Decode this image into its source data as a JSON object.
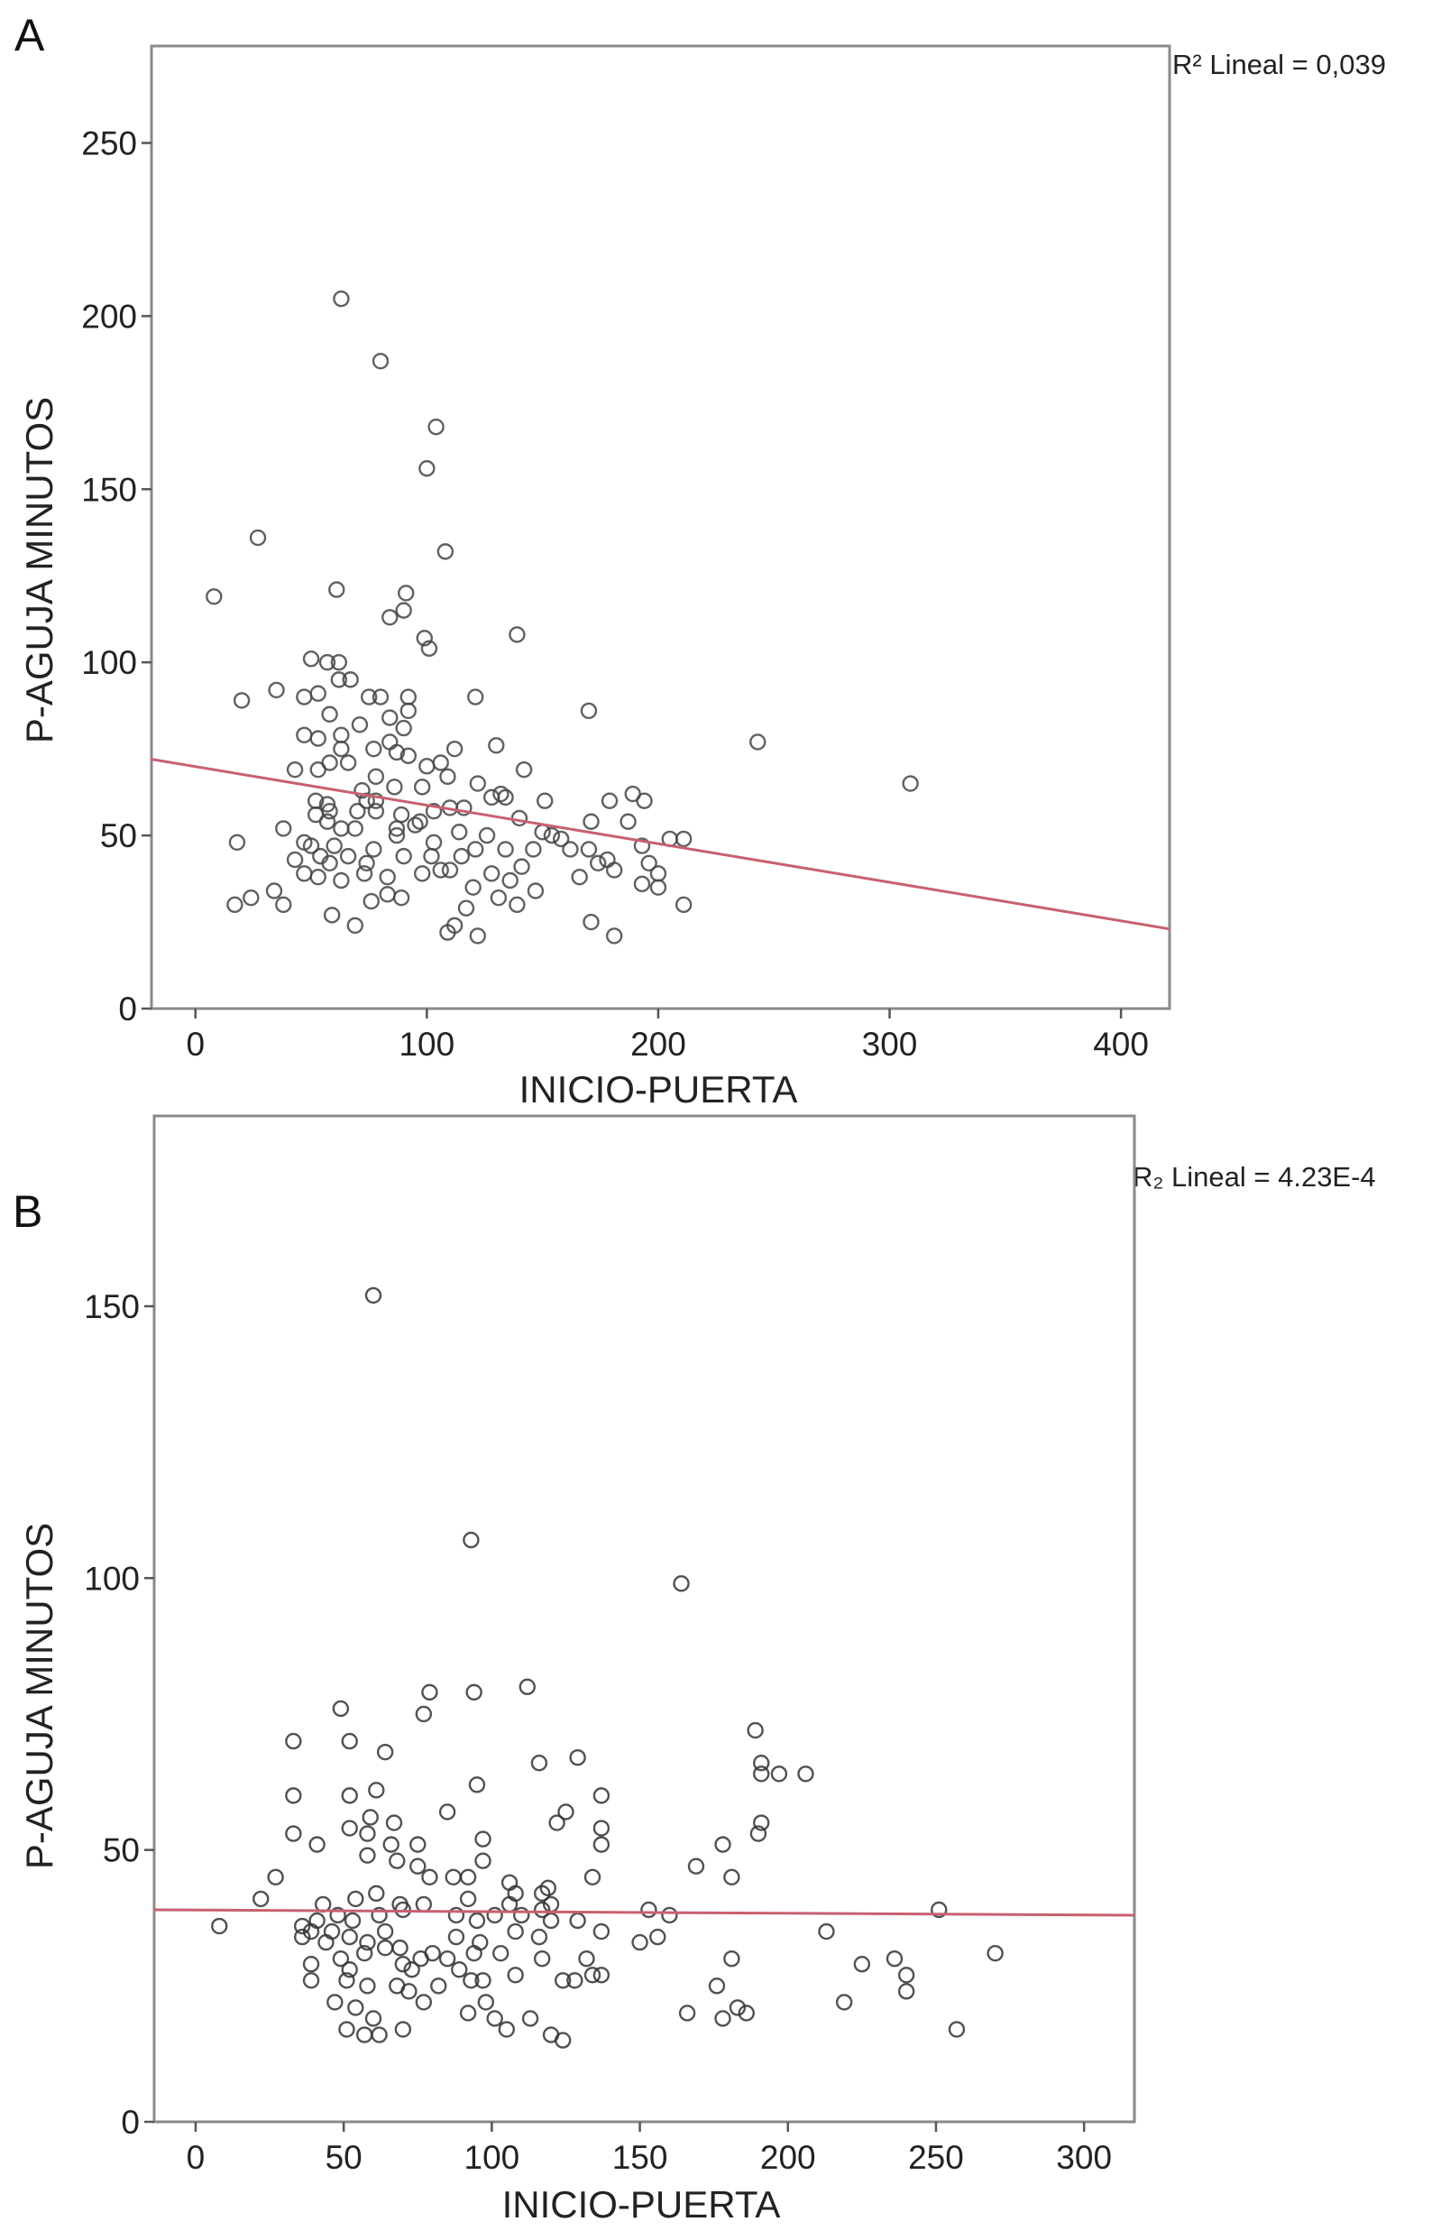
{
  "chart_data": [
    {
      "type": "scatter",
      "panel_label": "A",
      "xlabel": "INICIO-PUERTA",
      "ylabel": "P-AGUJA MINUTOS",
      "annotation": "R² Lineal = 0,039",
      "xlim": [
        -19,
        421
      ],
      "ylim": [
        0,
        278
      ],
      "xticks": [
        0,
        100,
        200,
        300,
        400
      ],
      "yticks": [
        0,
        50,
        100,
        150,
        200,
        250
      ],
      "grid": false,
      "marker_color": "#444444",
      "fit_line_color": "#c9606f",
      "fit_line": {
        "x": [
          -19,
          421
        ],
        "y": [
          72,
          23
        ]
      },
      "points": [
        [
          63,
          205
        ],
        [
          80,
          187
        ],
        [
          104,
          168
        ],
        [
          100,
          156
        ],
        [
          108,
          132
        ],
        [
          27,
          136
        ],
        [
          8,
          119
        ],
        [
          61,
          121
        ],
        [
          91,
          120
        ],
        [
          90,
          115
        ],
        [
          84,
          113
        ],
        [
          99,
          107
        ],
        [
          101,
          104
        ],
        [
          139,
          108
        ],
        [
          50,
          101
        ],
        [
          62,
          100
        ],
        [
          57,
          100
        ],
        [
          62,
          95
        ],
        [
          67,
          95
        ],
        [
          20,
          89
        ],
        [
          35,
          92
        ],
        [
          47,
          90
        ],
        [
          53,
          91
        ],
        [
          75,
          90
        ],
        [
          80,
          90
        ],
        [
          92,
          90
        ],
        [
          121,
          90
        ],
        [
          170,
          86
        ],
        [
          58,
          85
        ],
        [
          92,
          86
        ],
        [
          84,
          84
        ],
        [
          71,
          82
        ],
        [
          90,
          81
        ],
        [
          47,
          79
        ],
        [
          63,
          79
        ],
        [
          53,
          78
        ],
        [
          243,
          77
        ],
        [
          130,
          76
        ],
        [
          112,
          75
        ],
        [
          63,
          75
        ],
        [
          77,
          75
        ],
        [
          87,
          74
        ],
        [
          43,
          69
        ],
        [
          53,
          69
        ],
        [
          100,
          70
        ],
        [
          109,
          67
        ],
        [
          142,
          69
        ],
        [
          309,
          65
        ],
        [
          122,
          65
        ],
        [
          128,
          61
        ],
        [
          134,
          61
        ],
        [
          151,
          60
        ],
        [
          179,
          60
        ],
        [
          189,
          62
        ],
        [
          194,
          60
        ],
        [
          74,
          60
        ],
        [
          78,
          60
        ],
        [
          52,
          60
        ],
        [
          57,
          59
        ],
        [
          110,
          58
        ],
        [
          140,
          55
        ],
        [
          171,
          54
        ],
        [
          187,
          54
        ],
        [
          38,
          52
        ],
        [
          18,
          48
        ],
        [
          154,
          50
        ],
        [
          158,
          49
        ],
        [
          205,
          49
        ],
        [
          211,
          49
        ],
        [
          193,
          47
        ],
        [
          170,
          46
        ],
        [
          178,
          43
        ],
        [
          181,
          40
        ],
        [
          196,
          42
        ],
        [
          200,
          39
        ],
        [
          200,
          35
        ],
        [
          193,
          36
        ],
        [
          211,
          30
        ],
        [
          171,
          25
        ],
        [
          181,
          21
        ],
        [
          122,
          21
        ],
        [
          109,
          22
        ],
        [
          112,
          24
        ],
        [
          117,
          29
        ],
        [
          120,
          35
        ],
        [
          17,
          30
        ],
        [
          24,
          32
        ],
        [
          34,
          34
        ],
        [
          38,
          30
        ],
        [
          59,
          27
        ],
        [
          69,
          24
        ],
        [
          76,
          31
        ],
        [
          83,
          33
        ],
        [
          89,
          32
        ],
        [
          139,
          30
        ],
        [
          147,
          34
        ],
        [
          131,
          32
        ],
        [
          136,
          37
        ],
        [
          141,
          41
        ],
        [
          128,
          39
        ],
        [
          43,
          43
        ],
        [
          47,
          39
        ],
        [
          53,
          38
        ],
        [
          63,
          37
        ],
        [
          73,
          39
        ],
        [
          83,
          38
        ],
        [
          98,
          39
        ],
        [
          106,
          40
        ],
        [
          115,
          44
        ],
        [
          121,
          46
        ],
        [
          126,
          50
        ],
        [
          114,
          51
        ],
        [
          103,
          48
        ],
        [
          95,
          53
        ],
        [
          87,
          52
        ],
        [
          69,
          52
        ],
        [
          60,
          47
        ],
        [
          50,
          47
        ],
        [
          54,
          44
        ],
        [
          66,
          44
        ],
        [
          77,
          46
        ],
        [
          90,
          44
        ],
        [
          97,
          54
        ],
        [
          87,
          50
        ],
        [
          63,
          52
        ],
        [
          57,
          54
        ],
        [
          70,
          57
        ],
        [
          78,
          57
        ],
        [
          89,
          56
        ],
        [
          103,
          57
        ],
        [
          134,
          46
        ],
        [
          146,
          46
        ],
        [
          162,
          46
        ],
        [
          174,
          42
        ],
        [
          166,
          38
        ],
        [
          52,
          56
        ],
        [
          58,
          57
        ],
        [
          72,
          63
        ],
        [
          86,
          64
        ],
        [
          98,
          64
        ],
        [
          66,
          71
        ],
        [
          78,
          67
        ],
        [
          106,
          71
        ],
        [
          58,
          71
        ],
        [
          84,
          77
        ],
        [
          92,
          73
        ],
        [
          58,
          42
        ],
        [
          74,
          42
        ],
        [
          102,
          44
        ],
        [
          110,
          40
        ],
        [
          47,
          48
        ],
        [
          150,
          51
        ],
        [
          132,
          62
        ],
        [
          116,
          58
        ]
      ]
    },
    {
      "type": "scatter",
      "panel_label": "B",
      "xlabel": "INICIO-PUERTA",
      "ylabel": "P-AGUJA MINUTOS",
      "annotation": "R₂ Lineal = 4.23E-4",
      "xlim": [
        -14,
        317
      ],
      "ylim": [
        0,
        185
      ],
      "xticks": [
        0,
        50,
        100,
        150,
        200,
        250,
        300
      ],
      "yticks": [
        0,
        50,
        100,
        150
      ],
      "grid": false,
      "marker_color": "#333333",
      "fit_line_color": "#c9606f",
      "fit_line": {
        "x": [
          -14,
          317
        ],
        "y": [
          39,
          38
        ]
      },
      "points": [
        [
          60,
          152
        ],
        [
          93,
          107
        ],
        [
          164,
          99
        ],
        [
          112,
          80
        ],
        [
          79,
          79
        ],
        [
          94,
          79
        ],
        [
          49,
          76
        ],
        [
          77,
          75
        ],
        [
          189,
          72
        ],
        [
          33,
          70
        ],
        [
          52,
          70
        ],
        [
          64,
          68
        ],
        [
          129,
          67
        ],
        [
          116,
          66
        ],
        [
          191,
          66
        ],
        [
          197,
          64
        ],
        [
          206,
          64
        ],
        [
          191,
          64
        ],
        [
          95,
          62
        ],
        [
          61,
          61
        ],
        [
          33,
          60
        ],
        [
          52,
          60
        ],
        [
          137,
          60
        ],
        [
          125,
          57
        ],
        [
          122,
          55
        ],
        [
          85,
          57
        ],
        [
          59,
          56
        ],
        [
          67,
          55
        ],
        [
          52,
          54
        ],
        [
          137,
          54
        ],
        [
          191,
          55
        ],
        [
          190,
          53
        ],
        [
          33,
          53
        ],
        [
          58,
          53
        ],
        [
          41,
          51
        ],
        [
          97,
          52
        ],
        [
          178,
          51
        ],
        [
          75,
          51
        ],
        [
          66,
          51
        ],
        [
          137,
          51
        ],
        [
          58,
          49
        ],
        [
          68,
          48
        ],
        [
          169,
          47
        ],
        [
          75,
          47
        ],
        [
          27,
          45
        ],
        [
          79,
          45
        ],
        [
          87,
          45
        ],
        [
          92,
          45
        ],
        [
          97,
          48
        ],
        [
          134,
          45
        ],
        [
          181,
          45
        ],
        [
          106,
          44
        ],
        [
          22,
          41
        ],
        [
          61,
          42
        ],
        [
          119,
          43
        ],
        [
          251,
          39
        ],
        [
          153,
          39
        ],
        [
          160,
          38
        ],
        [
          8,
          36
        ],
        [
          213,
          35
        ],
        [
          137,
          35
        ],
        [
          156,
          34
        ],
        [
          150,
          33
        ],
        [
          270,
          31
        ],
        [
          236,
          30
        ],
        [
          181,
          30
        ],
        [
          225,
          29
        ],
        [
          240,
          27
        ],
        [
          240,
          24
        ],
        [
          176,
          25
        ],
        [
          219,
          22
        ],
        [
          166,
          20
        ],
        [
          178,
          19
        ],
        [
          183,
          21
        ],
        [
          186,
          20
        ],
        [
          257,
          17
        ],
        [
          51,
          17
        ],
        [
          57,
          16
        ],
        [
          62,
          16
        ],
        [
          70,
          17
        ],
        [
          120,
          16
        ],
        [
          124,
          15
        ],
        [
          113,
          19
        ],
        [
          105,
          17
        ],
        [
          92,
          20
        ],
        [
          60,
          19
        ],
        [
          47,
          22
        ],
        [
          54,
          21
        ],
        [
          101,
          19
        ],
        [
          98,
          22
        ],
        [
          39,
          26
        ],
        [
          51,
          26
        ],
        [
          58,
          25
        ],
        [
          68,
          25
        ],
        [
          72,
          24
        ],
        [
          77,
          22
        ],
        [
          82,
          25
        ],
        [
          93,
          26
        ],
        [
          97,
          26
        ],
        [
          108,
          27
        ],
        [
          124,
          26
        ],
        [
          128,
          26
        ],
        [
          134,
          27
        ],
        [
          137,
          27
        ],
        [
          39,
          29
        ],
        [
          49,
          30
        ],
        [
          57,
          31
        ],
        [
          70,
          29
        ],
        [
          76,
          30
        ],
        [
          85,
          30
        ],
        [
          94,
          31
        ],
        [
          103,
          31
        ],
        [
          117,
          30
        ],
        [
          132,
          30
        ],
        [
          36,
          34
        ],
        [
          44,
          33
        ],
        [
          52,
          34
        ],
        [
          58,
          33
        ],
        [
          69,
          32
        ],
        [
          80,
          31
        ],
        [
          88,
          34
        ],
        [
          96,
          33
        ],
        [
          108,
          35
        ],
        [
          116,
          34
        ],
        [
          41,
          37
        ],
        [
          48,
          38
        ],
        [
          53,
          37
        ],
        [
          62,
          38
        ],
        [
          70,
          39
        ],
        [
          77,
          40
        ],
        [
          88,
          38
        ],
        [
          101,
          38
        ],
        [
          110,
          38
        ],
        [
          120,
          37
        ],
        [
          129,
          37
        ],
        [
          43,
          40
        ],
        [
          54,
          41
        ],
        [
          69,
          40
        ],
        [
          92,
          41
        ],
        [
          108,
          42
        ],
        [
          117,
          42
        ],
        [
          39,
          35
        ],
        [
          46,
          35
        ],
        [
          64,
          35
        ],
        [
          95,
          37
        ],
        [
          106,
          40
        ],
        [
          117,
          39
        ],
        [
          73,
          28
        ],
        [
          89,
          28
        ],
        [
          36,
          36
        ],
        [
          64,
          32
        ],
        [
          52,
          28
        ],
        [
          120,
          40
        ]
      ]
    }
  ]
}
